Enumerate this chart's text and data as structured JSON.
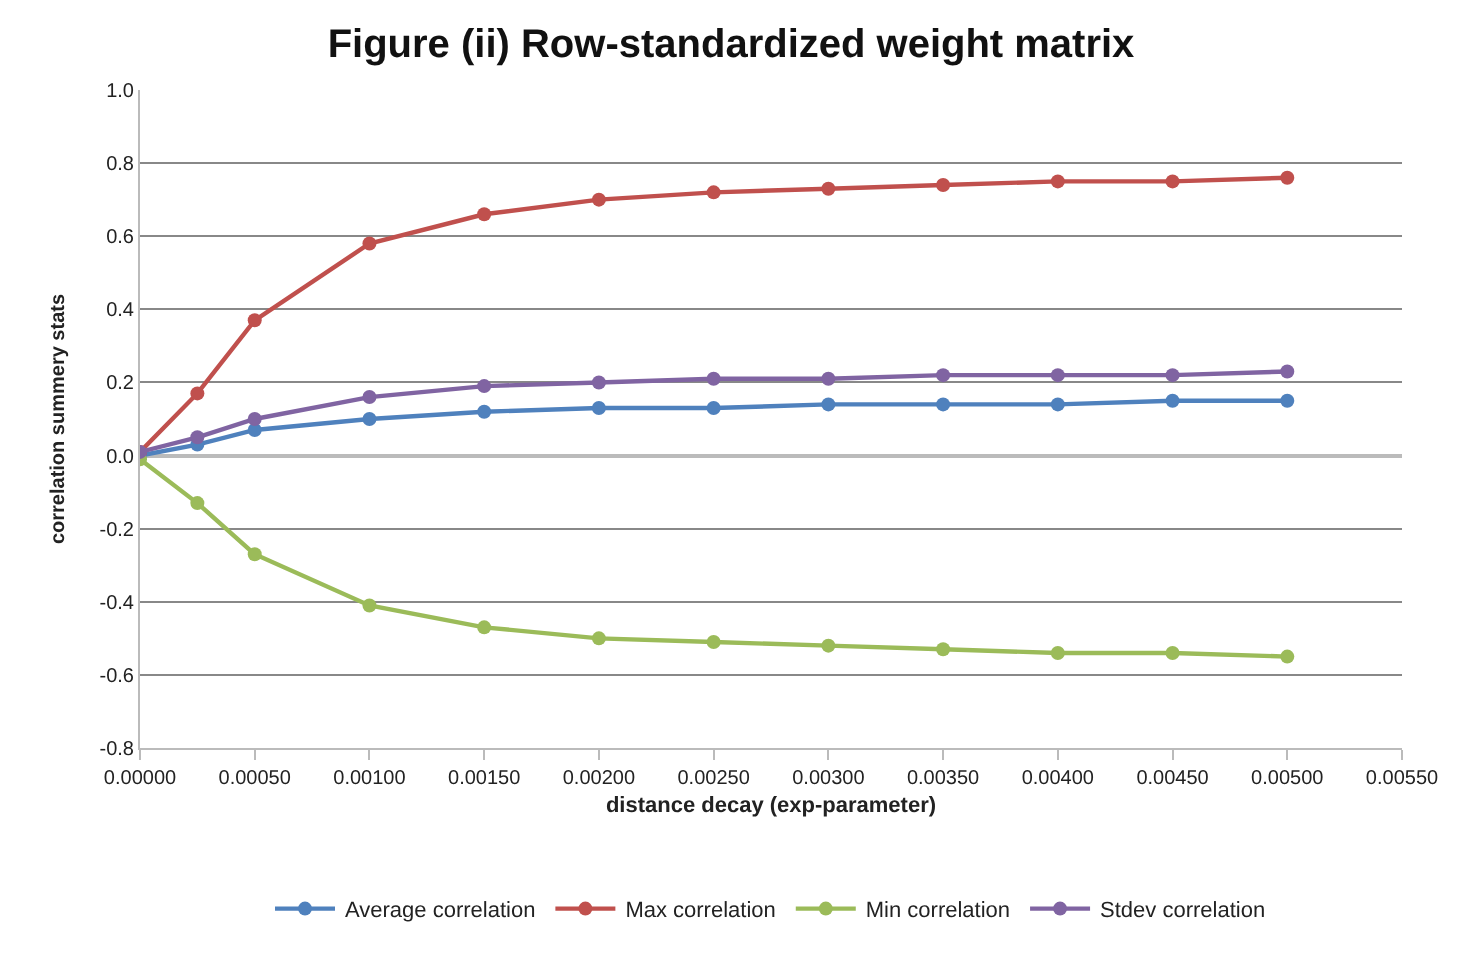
{
  "chart_data": {
    "type": "line",
    "title": "Figure (ii) Row-standardized weight matrix",
    "xlabel": "distance decay (exp-parameter)",
    "ylabel": "correlation summery stats",
    "x": [
      0,
      0.00025,
      0.0005,
      0.001,
      0.0015,
      0.002,
      0.0025,
      0.003,
      0.0035,
      0.004,
      0.0045,
      0.005
    ],
    "series": [
      {
        "name": "Average correlation",
        "color": "#4f81bd",
        "values": [
          0.0,
          0.03,
          0.07,
          0.1,
          0.12,
          0.13,
          0.13,
          0.14,
          0.14,
          0.14,
          0.15,
          0.15
        ]
      },
      {
        "name": "Max correlation",
        "color": "#c0504d",
        "values": [
          0.01,
          0.17,
          0.37,
          0.58,
          0.66,
          0.7,
          0.72,
          0.73,
          0.74,
          0.75,
          0.75,
          0.76
        ]
      },
      {
        "name": "Min correlation",
        "color": "#9bbb59",
        "values": [
          -0.01,
          -0.13,
          -0.27,
          -0.41,
          -0.47,
          -0.5,
          -0.51,
          -0.52,
          -0.53,
          -0.54,
          -0.54,
          -0.55
        ]
      },
      {
        "name": "Stdev correlation",
        "color": "#8064a2",
        "values": [
          0.01,
          0.05,
          0.1,
          0.16,
          0.19,
          0.2,
          0.21,
          0.21,
          0.22,
          0.22,
          0.22,
          0.23
        ]
      }
    ],
    "xlim": [
      0,
      0.0055
    ],
    "xticks": [
      {
        "value": 0,
        "label": "0.00000"
      },
      {
        "value": 0.0005,
        "label": "0.00050"
      },
      {
        "value": 0.001,
        "label": "0.00100"
      },
      {
        "value": 0.0015,
        "label": "0.00150"
      },
      {
        "value": 0.002,
        "label": "0.00200"
      },
      {
        "value": 0.0025,
        "label": "0.00250"
      },
      {
        "value": 0.003,
        "label": "0.00300"
      },
      {
        "value": 0.0035,
        "label": "0.00350"
      },
      {
        "value": 0.004,
        "label": "0.00400"
      },
      {
        "value": 0.0045,
        "label": "0.00450"
      },
      {
        "value": 0.005,
        "label": "0.00500"
      },
      {
        "value": 0.0055,
        "label": "0.00550"
      }
    ],
    "ylim": [
      -0.8,
      1.0
    ],
    "yticks": [
      {
        "value": -0.8,
        "label": "-0.8"
      },
      {
        "value": -0.6,
        "label": "-0.6"
      },
      {
        "value": -0.4,
        "label": "-0.4"
      },
      {
        "value": -0.2,
        "label": "-0.2"
      },
      {
        "value": 0,
        "label": "0.0"
      },
      {
        "value": 0.2,
        "label": "0.2"
      },
      {
        "value": 0.4,
        "label": "0.4"
      },
      {
        "value": 0.6,
        "label": "0.6"
      },
      {
        "value": 0.8,
        "label": "0.8"
      },
      {
        "value": 1.0,
        "label": "1.0"
      }
    ],
    "grid": "y",
    "legend": "bottom",
    "marker": "circle",
    "line_style": "solid"
  }
}
